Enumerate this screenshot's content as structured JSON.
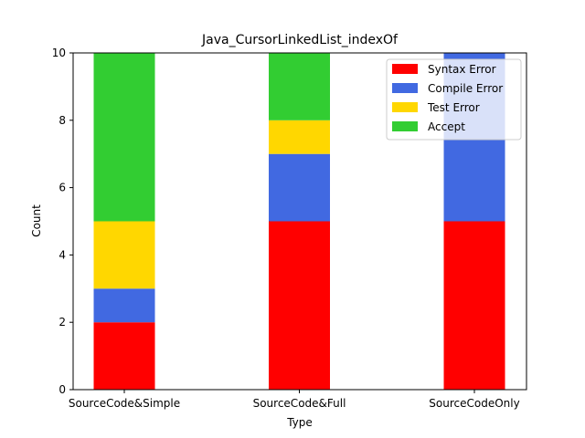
{
  "chart_data": {
    "type": "bar",
    "stacked": true,
    "title": "Java_CursorLinkedList_indexOf",
    "xlabel": "Type",
    "ylabel": "Count",
    "categories": [
      "SourceCode&Simple",
      "SourceCode&Full",
      "SourceCodeOnly"
    ],
    "ylim": [
      0,
      10
    ],
    "yticks": [
      0,
      2,
      4,
      6,
      8,
      10
    ],
    "series": [
      {
        "name": "Syntax Error",
        "values": [
          2,
          5,
          5
        ],
        "color": "#ff0000"
      },
      {
        "name": "Compile Error",
        "values": [
          1,
          2,
          5
        ],
        "color": "#4169e1"
      },
      {
        "name": "Test Error",
        "values": [
          2,
          1,
          0
        ],
        "color": "#ffd700"
      },
      {
        "name": "Accept",
        "values": [
          5,
          2,
          0
        ],
        "color": "#32cd32"
      }
    ],
    "legend_position": "top-right",
    "grid": false
  }
}
